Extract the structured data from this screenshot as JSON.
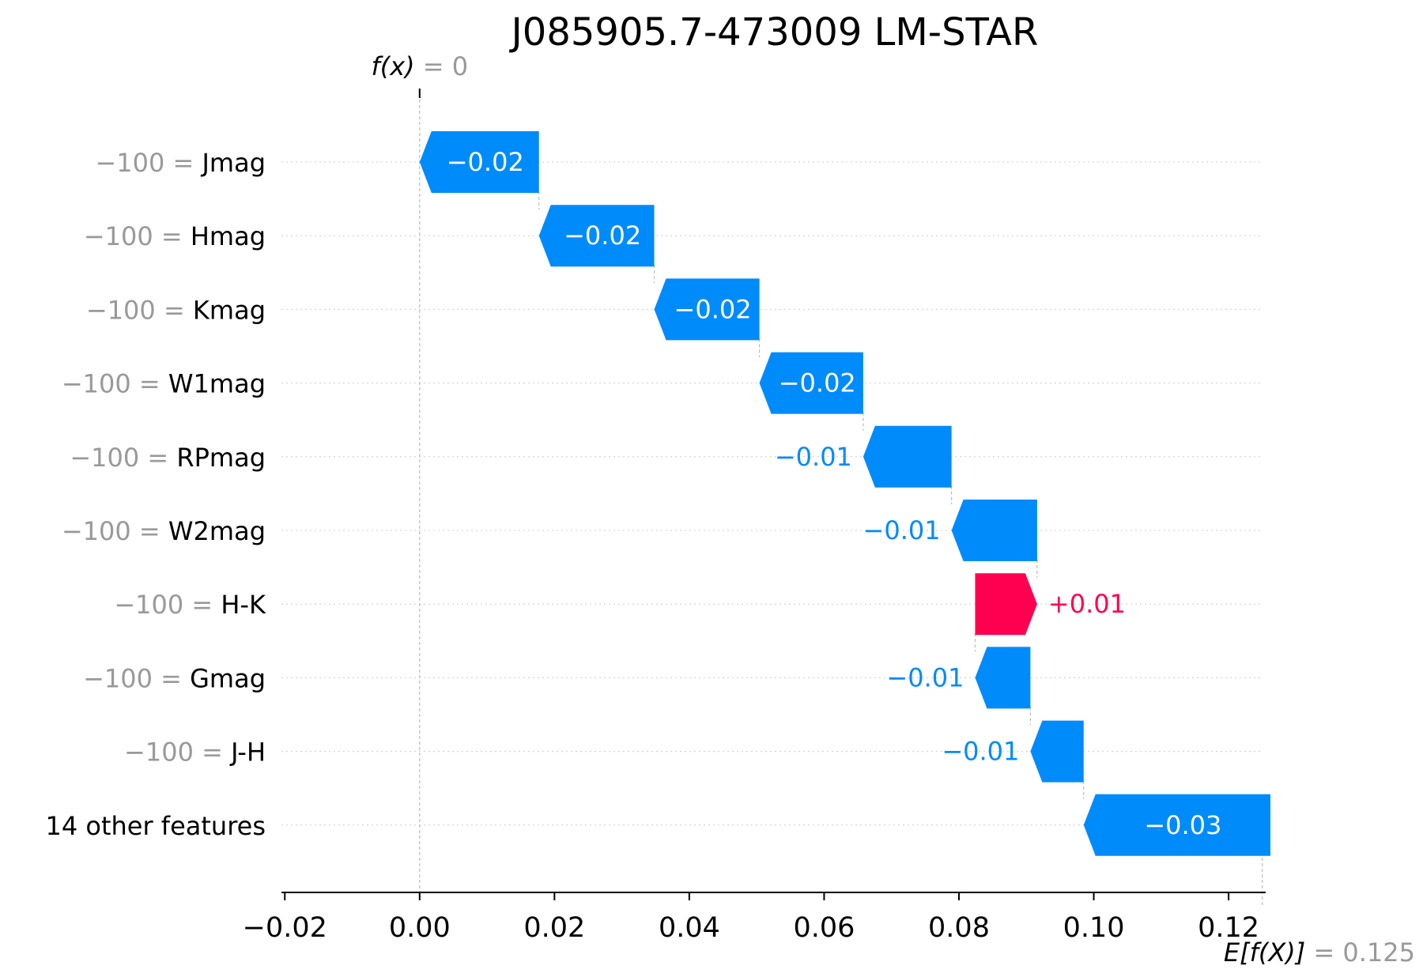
{
  "chart_data": {
    "type": "waterfall",
    "title": "J085905.7-473009 LM-STAR",
    "base_value": 0.125,
    "output_value": 0,
    "fx_label": "f(x)",
    "fx_value_text": "= 0",
    "efx_label": "E[f(X)]",
    "efx_value_text": "= 0.125",
    "xlim": [
      -0.0205,
      0.1255
    ],
    "xticks": [
      -0.02,
      0.0,
      0.02,
      0.04,
      0.06,
      0.08,
      0.1,
      0.12
    ],
    "xtick_labels": [
      "−0.02",
      "0.00",
      "0.02",
      "0.04",
      "0.06",
      "0.08",
      "0.10",
      "0.12"
    ],
    "features": [
      {
        "value_text": "−100 =",
        "name": "Jmag",
        "contribution": -0.0177,
        "label": "−0.02"
      },
      {
        "value_text": "−100 =",
        "name": "Hmag",
        "contribution": -0.0171,
        "label": "−0.02"
      },
      {
        "value_text": "−100 =",
        "name": "Kmag",
        "contribution": -0.0156,
        "label": "−0.02"
      },
      {
        "value_text": "−100 =",
        "name": "W1mag",
        "contribution": -0.0154,
        "label": "−0.02"
      },
      {
        "value_text": "−100 =",
        "name": "RPmag",
        "contribution": -0.0131,
        "label": "−0.01"
      },
      {
        "value_text": "−100 =",
        "name": "W2mag",
        "contribution": -0.0127,
        "label": "−0.01"
      },
      {
        "value_text": "−100 =",
        "name": "H-K",
        "contribution": 0.0092,
        "label": "+0.01"
      },
      {
        "value_text": "−100 =",
        "name": "Gmag",
        "contribution": -0.0082,
        "label": "−0.01"
      },
      {
        "value_text": "−100 =",
        "name": "J-H",
        "contribution": -0.0079,
        "label": "−0.01"
      },
      {
        "value_text": "",
        "name": "14 other features",
        "contribution": -0.0277,
        "label": "−0.03"
      }
    ],
    "colors": {
      "negative": "#008bfb",
      "positive": "#ff0051",
      "grey_text": "#999999",
      "axis": "#000000"
    }
  }
}
